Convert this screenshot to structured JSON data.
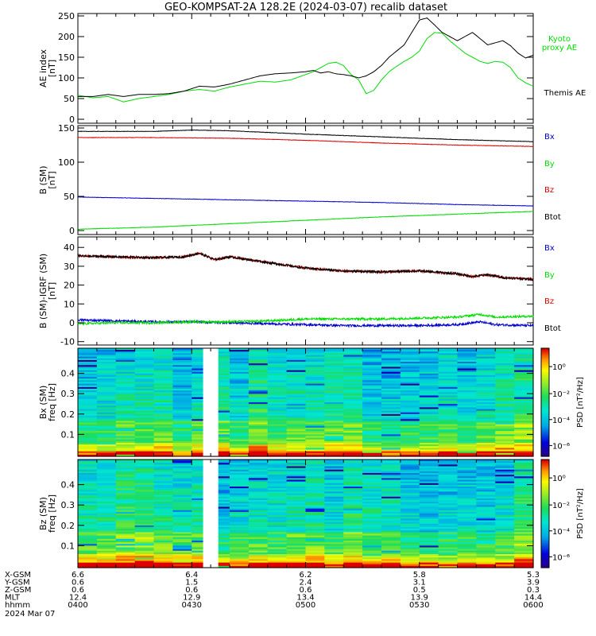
{
  "title": "GEO-KOMPSAT-2A 128.2E (2024-03-07) recalib dataset",
  "colors": {
    "black": "#000000",
    "green": "#00dd00",
    "red": "#dd0000",
    "blue": "#0000cc"
  },
  "chart_data": [
    {
      "type": "line",
      "panel": "ae_index",
      "ylabel": "AE index",
      "yunit": "[nT]",
      "ylim": [
        0,
        250
      ],
      "yticks": [
        "0",
        "50",
        "100",
        "150",
        "200",
        "250"
      ],
      "series": [
        {
          "name": "Kyoto proxy AE",
          "label_lines": [
            "Kyoto",
            "proxy AE"
          ],
          "color": "#00dd00",
          "x": [
            0,
            4,
            8,
            12,
            16,
            20,
            24,
            28,
            32,
            36,
            40,
            44,
            48,
            52,
            56,
            60,
            62,
            64,
            66,
            68,
            70,
            72,
            74,
            76,
            78,
            80,
            82,
            84,
            86,
            88,
            90,
            92,
            94,
            96,
            98,
            100,
            102,
            104,
            106,
            108,
            110,
            112,
            114,
            116,
            118,
            120
          ],
          "values": [
            58,
            52,
            55,
            42,
            50,
            55,
            60,
            68,
            72,
            68,
            78,
            85,
            92,
            90,
            95,
            108,
            115,
            125,
            135,
            138,
            130,
            108,
            95,
            62,
            70,
            95,
            115,
            128,
            140,
            150,
            165,
            195,
            210,
            208,
            190,
            175,
            160,
            150,
            140,
            135,
            140,
            138,
            125,
            100,
            88,
            80
          ]
        },
        {
          "name": "Themis AE",
          "label_lines": [
            "Themis AE"
          ],
          "color": "#000000",
          "x": [
            0,
            4,
            8,
            12,
            16,
            20,
            24,
            28,
            32,
            36,
            40,
            44,
            48,
            52,
            56,
            60,
            62,
            64,
            66,
            68,
            70,
            72,
            74,
            76,
            78,
            80,
            82,
            84,
            86,
            88,
            90,
            92,
            94,
            96,
            98,
            100,
            102,
            104,
            106,
            108,
            110,
            112,
            114,
            116,
            118,
            120
          ],
          "values": [
            55,
            55,
            60,
            55,
            60,
            60,
            62,
            68,
            80,
            78,
            85,
            95,
            105,
            110,
            112,
            115,
            118,
            112,
            115,
            110,
            108,
            105,
            100,
            105,
            115,
            130,
            150,
            165,
            180,
            210,
            240,
            245,
            228,
            210,
            200,
            190,
            200,
            210,
            195,
            180,
            185,
            190,
            178,
            160,
            148,
            155
          ]
        }
      ]
    },
    {
      "type": "line",
      "panel": "b_sm",
      "ylabel": "B (SM)",
      "yunit": "[nT]",
      "ylim": [
        0,
        150
      ],
      "yticks": [
        "0",
        "50",
        "100",
        "150"
      ],
      "series": [
        {
          "name": "Bx",
          "color": "#0000cc",
          "x": [
            0,
            20,
            40,
            60,
            80,
            100,
            120
          ],
          "values": [
            49,
            47,
            45,
            43,
            41,
            38,
            36
          ]
        },
        {
          "name": "By",
          "color": "#00dd00",
          "x": [
            0,
            20,
            40,
            60,
            80,
            100,
            120
          ],
          "values": [
            2,
            5,
            10,
            15,
            20,
            24,
            28
          ]
        },
        {
          "name": "Bz",
          "color": "#dd0000",
          "x": [
            0,
            20,
            40,
            60,
            80,
            100,
            120
          ],
          "values": [
            136,
            136,
            135,
            132,
            128,
            125,
            123
          ]
        },
        {
          "name": "Btot",
          "color": "#000000",
          "x": [
            0,
            20,
            30,
            40,
            60,
            80,
            100,
            120
          ],
          "values": [
            145,
            145,
            147,
            146,
            141,
            137,
            133,
            130
          ]
        }
      ]
    },
    {
      "type": "line",
      "panel": "b_minus_igrf",
      "ylabel": "B (SM)-IGRF (SM)",
      "yunit": "[nT]",
      "ylim": [
        -10,
        40
      ],
      "yticks": [
        "-10",
        "0",
        "10",
        "20",
        "30",
        "40"
      ],
      "series": [
        {
          "name": "Bx",
          "color": "#0000cc",
          "x": [
            0,
            10,
            20,
            30,
            40,
            50,
            60,
            70,
            80,
            90,
            100,
            106,
            110,
            120
          ],
          "values": [
            1.5,
            1,
            0.5,
            0.5,
            0,
            -0.5,
            -1,
            -1.5,
            -1.5,
            -1.5,
            -1,
            0.5,
            -1,
            -1.5
          ]
        },
        {
          "name": "By",
          "color": "#00dd00",
          "x": [
            0,
            10,
            20,
            30,
            40,
            50,
            60,
            70,
            80,
            90,
            100,
            106,
            110,
            120
          ],
          "values": [
            -0.5,
            0,
            0,
            0.5,
            0.5,
            1,
            2,
            2,
            2,
            2.5,
            3,
            4.5,
            3,
            3.5
          ]
        },
        {
          "name": "Bz",
          "color": "#dd0000",
          "x": [
            0,
            10,
            20,
            28,
            32,
            36,
            40,
            50,
            60,
            70,
            80,
            90,
            100,
            104,
            108,
            112,
            120
          ],
          "values": [
            35.5,
            35,
            34.5,
            35,
            37,
            33.5,
            35,
            32,
            29,
            27.5,
            27,
            27.5,
            26,
            24.5,
            25.5,
            24,
            23
          ]
        },
        {
          "name": "Btot",
          "color": "#000000",
          "x": [
            0,
            10,
            20,
            28,
            32,
            36,
            40,
            50,
            60,
            70,
            80,
            90,
            100,
            104,
            108,
            112,
            120
          ],
          "values": [
            35.5,
            35,
            34.5,
            35,
            37,
            33.5,
            35,
            32,
            29,
            27.5,
            27,
            27.5,
            26,
            24.5,
            25.5,
            24,
            23
          ]
        }
      ]
    },
    {
      "type": "heatmap",
      "panel": "bx_psd",
      "ylabel": "Bx (SM)",
      "yunit": "freq [Hz]",
      "ylim": [
        0,
        0.5
      ],
      "yticks": [
        "0.1",
        "0.2",
        "0.3",
        "0.4"
      ],
      "colorbar_label": "PSD [nT²/Hz]",
      "colorbar_ticks": [
        "10⁰",
        "10⁻²",
        "10⁻⁴",
        "10⁻⁶"
      ],
      "data_gap": [
        33,
        37
      ]
    },
    {
      "type": "heatmap",
      "panel": "bz_psd",
      "ylabel": "Bz (SM)",
      "yunit": "freq [Hz]",
      "ylim": [
        0,
        0.5
      ],
      "yticks": [
        "0.1",
        "0.2",
        "0.3",
        "0.4"
      ],
      "colorbar_label": "PSD [nT²/Hz]",
      "colorbar_ticks": [
        "10⁰",
        "10⁻²",
        "10⁻⁴",
        "10⁻⁶"
      ],
      "data_gap": [
        33,
        37
      ]
    }
  ],
  "footer": {
    "rows": [
      {
        "label": "X-GSM",
        "values": [
          "6.6",
          "6.4",
          "6.2",
          "5.8",
          "5.3"
        ]
      },
      {
        "label": "Y-GSM",
        "values": [
          "0.6",
          "1.5",
          "2.4",
          "3.1",
          "3.9"
        ]
      },
      {
        "label": "Z-GSM",
        "values": [
          "0.6",
          "0.6",
          "0.6",
          "0.5",
          "0.3"
        ]
      },
      {
        "label": "MLT",
        "values": [
          "12.4",
          "12.9",
          "13.4",
          "13.9",
          "14.4"
        ]
      },
      {
        "label": "hhmm",
        "values": [
          "0400",
          "0430",
          "0500",
          "0530",
          "0600"
        ]
      }
    ],
    "date": "2024 Mar 07"
  }
}
